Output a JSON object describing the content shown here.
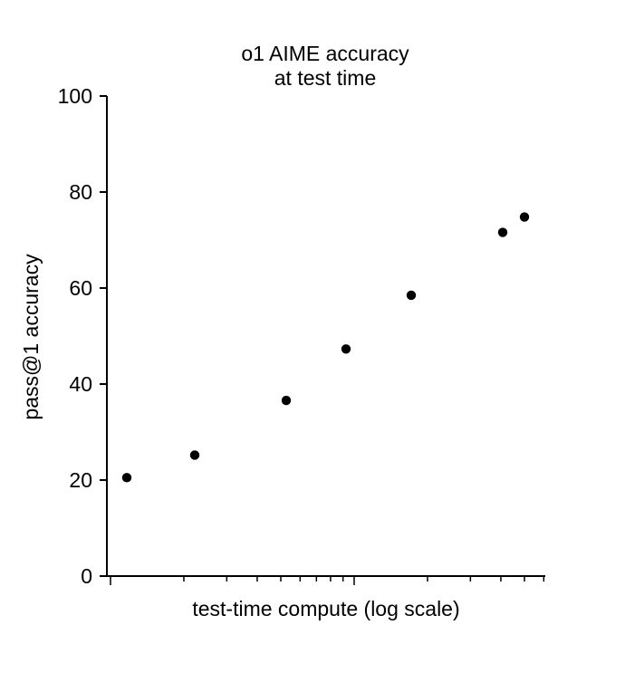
{
  "chart_data": {
    "type": "scatter",
    "title_lines": [
      "o1 AIME accuracy",
      "at test time"
    ],
    "xlabel": "test-time compute (log scale)",
    "ylabel": "pass@1 accuracy",
    "x_scale": "log",
    "x_tick_labels": "none",
    "ylim": [
      0,
      100
    ],
    "yticks": [
      0,
      20,
      40,
      60,
      80,
      100
    ],
    "grid": false,
    "legend": "none",
    "marker_color": "#000000",
    "points": [
      {
        "y": 20.5
      },
      {
        "y": 25.2
      },
      {
        "y": 36.6
      },
      {
        "y": 47.3
      },
      {
        "y": 58.5
      },
      {
        "y": 71.6
      },
      {
        "y": 74.8
      }
    ]
  }
}
